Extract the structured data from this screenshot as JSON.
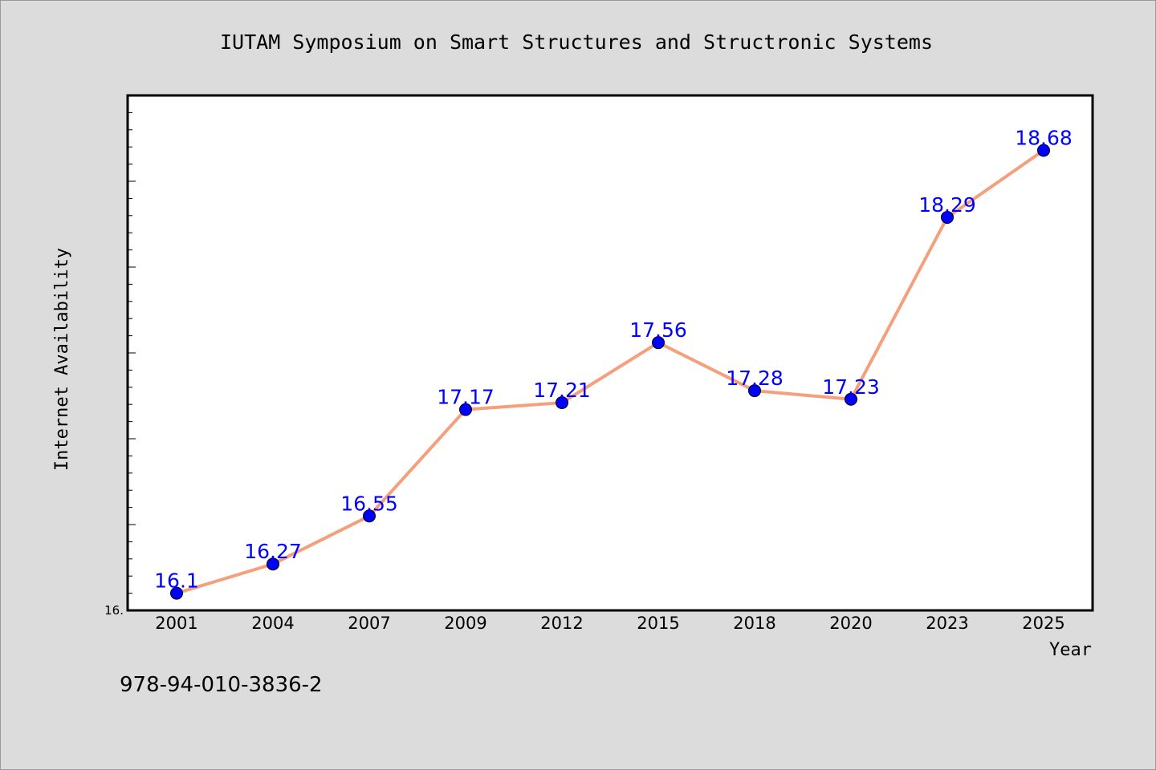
{
  "colors": {
    "background": "#dcdcdc",
    "plot_background": "#ffffff",
    "line": "#f5a07d",
    "marker": "#0000ff",
    "data_label": "#0000ff"
  },
  "chart_data": {
    "type": "line",
    "title": "IUTAM Symposium on Smart Structures and Structronic Systems",
    "xlabel": "Year",
    "ylabel": "Internet Availability",
    "categories": [
      "2001",
      "2004",
      "2007",
      "2009",
      "2012",
      "2015",
      "2018",
      "2020",
      "2023",
      "2025"
    ],
    "series": [
      {
        "values": [
          16.1,
          16.27,
          16.55,
          17.17,
          17.21,
          17.56,
          17.28,
          17.23,
          18.29,
          18.68
        ]
      }
    ],
    "data_labels": [
      "16.1",
      "16.27",
      "16.55",
      "17.17",
      "17.21",
      "17.56",
      "17.28",
      "17.23",
      "18.29",
      "18.68"
    ],
    "ylim": [
      16.0,
      19.0
    ],
    "y_tick_label": "16.",
    "grid": false,
    "legend": "none"
  },
  "footer": {
    "isbn": "978-94-010-3836-2"
  }
}
